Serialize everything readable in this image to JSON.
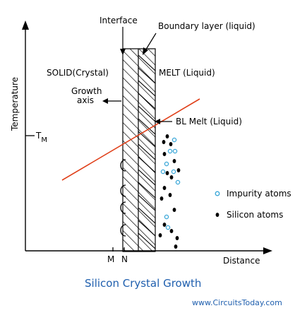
{
  "labels": {
    "interface": "Interface",
    "boundary_layer": "Boundary layer (liquid)",
    "solid": "SOLID(Crystal)",
    "melt": "MELT (Liquid)",
    "growth_axis_line1": "Growth",
    "growth_axis_line2": "axis",
    "bl_melt": "BL Melt (Liquid)",
    "temperature_axis": "Temperature",
    "distance_axis": "Distance",
    "tm_main": "T",
    "tm_sub": "M",
    "m_tick": "M",
    "n_tick": "N",
    "impurity_atoms": "Impurity atoms",
    "silicon_atoms": "Silicon atoms"
  },
  "title": "Silicon Crystal Growth",
  "website": "www.CircuitsToday.com",
  "colors": {
    "temperature_line": "#e0401a",
    "impurity_atom": "#3aa7d8",
    "silicon_atom": "#000000",
    "title_text": "#1f5fae",
    "axis": "#000000"
  }
}
